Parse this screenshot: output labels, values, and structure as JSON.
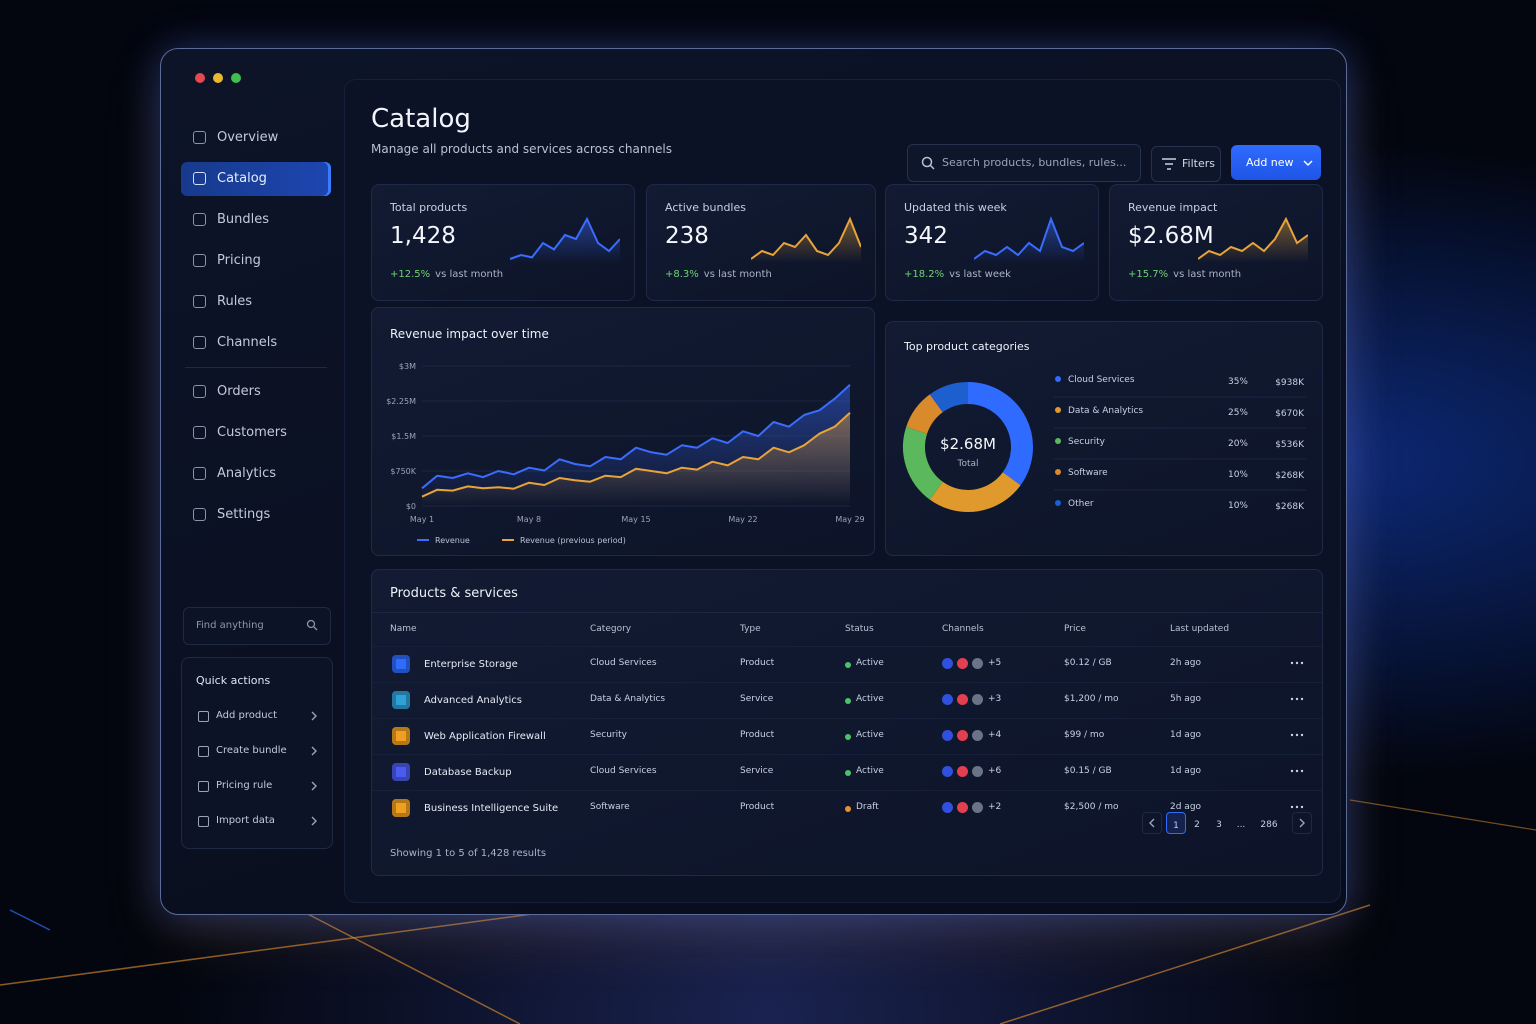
{
  "window": {
    "title": "Catalog",
    "subtitle": "Manage all products and services across channels"
  },
  "sidebar": {
    "nav": [
      "Overview",
      "Catalog",
      "Bundles",
      "Pricing",
      "Rules",
      "Channels",
      "Orders",
      "Customers",
      "Analytics",
      "Settings"
    ],
    "active": 1,
    "search_placeholder": "Find anything",
    "quick_actions": {
      "title": "Quick actions",
      "items": [
        "Add product",
        "Create bundle",
        "Pricing rule",
        "Import data"
      ]
    }
  },
  "toolbar": {
    "search_placeholder": "Search products, bundles, rules...",
    "filters": "Filters",
    "add_new": "Add new"
  },
  "kpis": [
    {
      "label": "Total products",
      "value": "1,428",
      "change": "+12.5%",
      "note": "vs last month",
      "color": "#3b6cff",
      "trend": [
        1,
        1.5,
        1.2,
        3,
        2.2,
        4,
        3.5,
        6,
        3,
        2,
        3.5
      ]
    },
    {
      "label": "Active bundles",
      "value": "238",
      "change": "+8.3%",
      "note": "vs last month",
      "color": "#e8a33a",
      "trend": [
        1,
        2,
        1.5,
        3,
        2.5,
        4,
        2,
        1.5,
        3,
        6,
        2.5
      ]
    },
    {
      "label": "Updated this week",
      "value": "342",
      "change": "+18.2%",
      "note": "vs last week",
      "color": "#3b6cff",
      "trend": [
        1,
        2,
        1.5,
        2.5,
        1.5,
        3,
        2,
        6,
        2.5,
        2,
        3
      ]
    },
    {
      "label": "Revenue impact",
      "value": "$2.68M",
      "change": "+15.7%",
      "note": "vs last month",
      "color": "#e8a33a",
      "trend": [
        1,
        2,
        1.5,
        2.5,
        2,
        3,
        2,
        3.5,
        6,
        3,
        4
      ]
    }
  ],
  "chart_data": [
    {
      "type": "line",
      "title": "Revenue impact over time",
      "categories": [
        "May 1",
        null,
        null,
        null,
        null,
        null,
        null,
        "May 8",
        null,
        null,
        null,
        null,
        null,
        null,
        "May 15",
        null,
        null,
        null,
        null,
        null,
        null,
        "May 22",
        null,
        null,
        null,
        null,
        null,
        null,
        "May 29"
      ],
      "series": [
        {
          "name": "Revenue",
          "color": "#3b6cff",
          "values": [
            380000,
            650000,
            600000,
            700000,
            620000,
            750000,
            680000,
            820000,
            760000,
            1000000,
            900000,
            850000,
            1050000,
            1000000,
            1250000,
            1150000,
            1100000,
            1300000,
            1250000,
            1450000,
            1350000,
            1600000,
            1500000,
            1800000,
            1700000,
            1950000,
            2050000,
            2300000,
            2600000
          ]
        },
        {
          "name": "Revenue (previous period)",
          "color": "#e8a33a",
          "values": [
            200000,
            350000,
            330000,
            420000,
            380000,
            400000,
            370000,
            500000,
            450000,
            600000,
            550000,
            520000,
            650000,
            620000,
            800000,
            750000,
            700000,
            820000,
            780000,
            950000,
            870000,
            1050000,
            1000000,
            1250000,
            1150000,
            1300000,
            1550000,
            1700000,
            2000000
          ]
        }
      ],
      "ylim": [
        0,
        3000000
      ],
      "yticks": [
        {
          "value": 0,
          "label": "$0"
        },
        {
          "value": 750000,
          "label": "$750K"
        },
        {
          "value": 1500000,
          "label": "$1.5M"
        },
        {
          "value": 2250000,
          "label": "$2.25M"
        },
        {
          "value": 3000000,
          "label": "$3M"
        }
      ],
      "grid": true,
      "area": true
    },
    {
      "type": "pie",
      "donut": true,
      "title": "Top product categories",
      "categories": [
        "Cloud Services",
        "Data & Analytics",
        "Security",
        "Software",
        "Other"
      ],
      "values": [
        35,
        25,
        20,
        10,
        10
      ],
      "value_labels": [
        "35%",
        "25%",
        "20%",
        "10%",
        "10%"
      ],
      "amounts": [
        "$938K",
        "$670K",
        "$536K",
        "$268K",
        "$268K"
      ],
      "colors": [
        "#2f6bff",
        "#e0992c",
        "#5cb85c",
        "#d98a2b",
        "#1e5fd0"
      ],
      "center_label": "$2.68M",
      "center_sublabel": "Total"
    }
  ],
  "table": {
    "title": "Products & services",
    "columns": [
      "Name",
      "Category",
      "Type",
      "Status",
      "Channels",
      "Price",
      "Last updated"
    ],
    "rows": [
      {
        "name": "Enterprise Storage",
        "category": "Cloud Services",
        "type": "Product",
        "status": "Active",
        "channels_more": "+5",
        "price": "$0.12 / GB",
        "updated": "2h ago",
        "icon_color": "#2f6bff",
        "status_color": "#4cc36a"
      },
      {
        "name": "Advanced Analytics",
        "category": "Data & Analytics",
        "type": "Service",
        "status": "Active",
        "channels_more": "+3",
        "price": "$1,200 / mo",
        "updated": "5h ago",
        "icon_color": "#2fa0d8",
        "status_color": "#4cc36a"
      },
      {
        "name": "Web Application Firewall",
        "category": "Security",
        "type": "Product",
        "status": "Active",
        "channels_more": "+4",
        "price": "$99 / mo",
        "updated": "1d ago",
        "icon_color": "#f0a020",
        "status_color": "#4cc36a"
      },
      {
        "name": "Database Backup",
        "category": "Cloud Services",
        "type": "Service",
        "status": "Active",
        "channels_more": "+6",
        "price": "$0.15 / GB",
        "updated": "1d ago",
        "icon_color": "#4a5cf0",
        "status_color": "#4cc36a"
      },
      {
        "name": "Business Intelligence Suite",
        "category": "Software",
        "type": "Product",
        "status": "Draft",
        "channels_more": "+2",
        "price": "$2,500 / mo",
        "updated": "2d ago",
        "icon_color": "#f0a020",
        "status_color": "#e8902a"
      }
    ],
    "footer": "Showing 1 to 5 of 1,428 results",
    "pages": [
      "1",
      "2",
      "3",
      "...",
      "286"
    ],
    "active_page": 0
  }
}
